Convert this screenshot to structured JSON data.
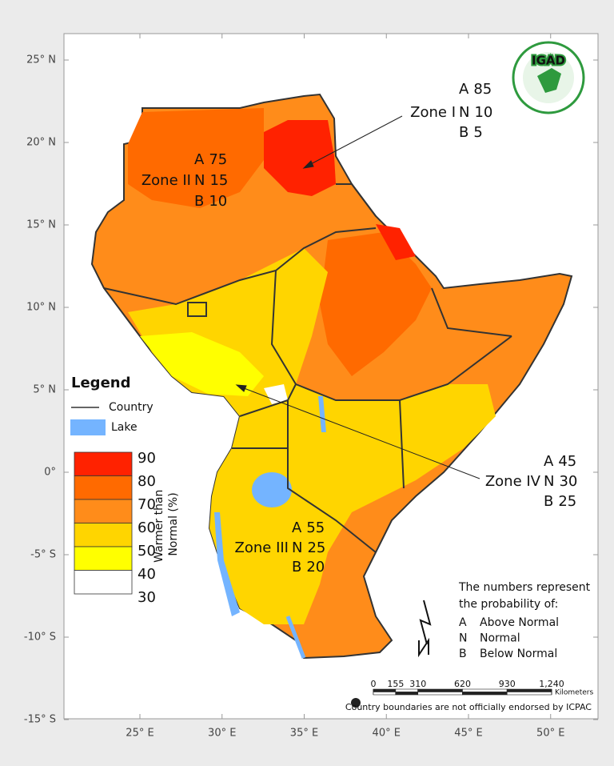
{
  "map": {
    "lat_ticks": [
      {
        "value": 25,
        "label": "25° N"
      },
      {
        "value": 20,
        "label": "20° N"
      },
      {
        "value": 15,
        "label": "15° N"
      },
      {
        "value": 10,
        "label": "10° N"
      },
      {
        "value": 5,
        "label": "5° N"
      },
      {
        "value": 0,
        "label": "0°"
      },
      {
        "value": -5,
        "label": "-5° S"
      },
      {
        "value": -10,
        "label": "-10° S"
      },
      {
        "value": -15,
        "label": "-15° S"
      }
    ],
    "lon_ticks": [
      {
        "value": 25,
        "label": "25° E"
      },
      {
        "value": 30,
        "label": "30° E"
      },
      {
        "value": 35,
        "label": "35° E"
      },
      {
        "value": 40,
        "label": "40° E"
      },
      {
        "value": 45,
        "label": "45° E"
      },
      {
        "value": 50,
        "label": "50° E"
      }
    ]
  },
  "logo": "IGAD",
  "zones": [
    {
      "name": "Zone I",
      "lines": [
        {
          "key": "A",
          "value": 85
        },
        {
          "key": "N",
          "value": 10
        },
        {
          "key": "B",
          "value": 5
        }
      ]
    },
    {
      "name": "Zone II",
      "lines": [
        {
          "key": "A",
          "value": 75
        },
        {
          "key": "N",
          "value": 15
        },
        {
          "key": "B",
          "value": 10
        }
      ]
    },
    {
      "name": "Zone III",
      "lines": [
        {
          "key": "A",
          "value": 55
        },
        {
          "key": "N",
          "value": 25
        },
        {
          "key": "B",
          "value": 20
        }
      ]
    },
    {
      "name": "Zone IV",
      "lines": [
        {
          "key": "A",
          "value": 45
        },
        {
          "key": "N",
          "value": 30
        },
        {
          "key": "B",
          "value": 25
        }
      ]
    }
  ],
  "legend": {
    "title": "Legend",
    "country": "Country",
    "lake": "Lake",
    "lake_color": "#74b4ff",
    "scale_title": [
      "Warmer than",
      "Normal (%)"
    ],
    "breaks": [
      90,
      80,
      70,
      60,
      50,
      40,
      30
    ],
    "colors": [
      "#ff2200",
      "#ff6a00",
      "#ff8c1a",
      "#ffd500",
      "#ffff00",
      "#ffffff"
    ]
  },
  "notes": {
    "title": [
      "The numbers represent",
      "the probability of:"
    ],
    "items": [
      {
        "key": "A",
        "text": "Above Normal"
      },
      {
        "key": "N",
        "text": "Normal"
      },
      {
        "key": "B",
        "text": "Below Normal"
      }
    ]
  },
  "scale_bar": {
    "ticks": [
      0,
      155,
      310,
      620,
      930,
      {
        "value": 1240,
        "label": "1,240"
      }
    ],
    "unit": "Kilometers"
  },
  "disclaimer": "Country boundaries are not officially endorsed by ICPAC"
}
